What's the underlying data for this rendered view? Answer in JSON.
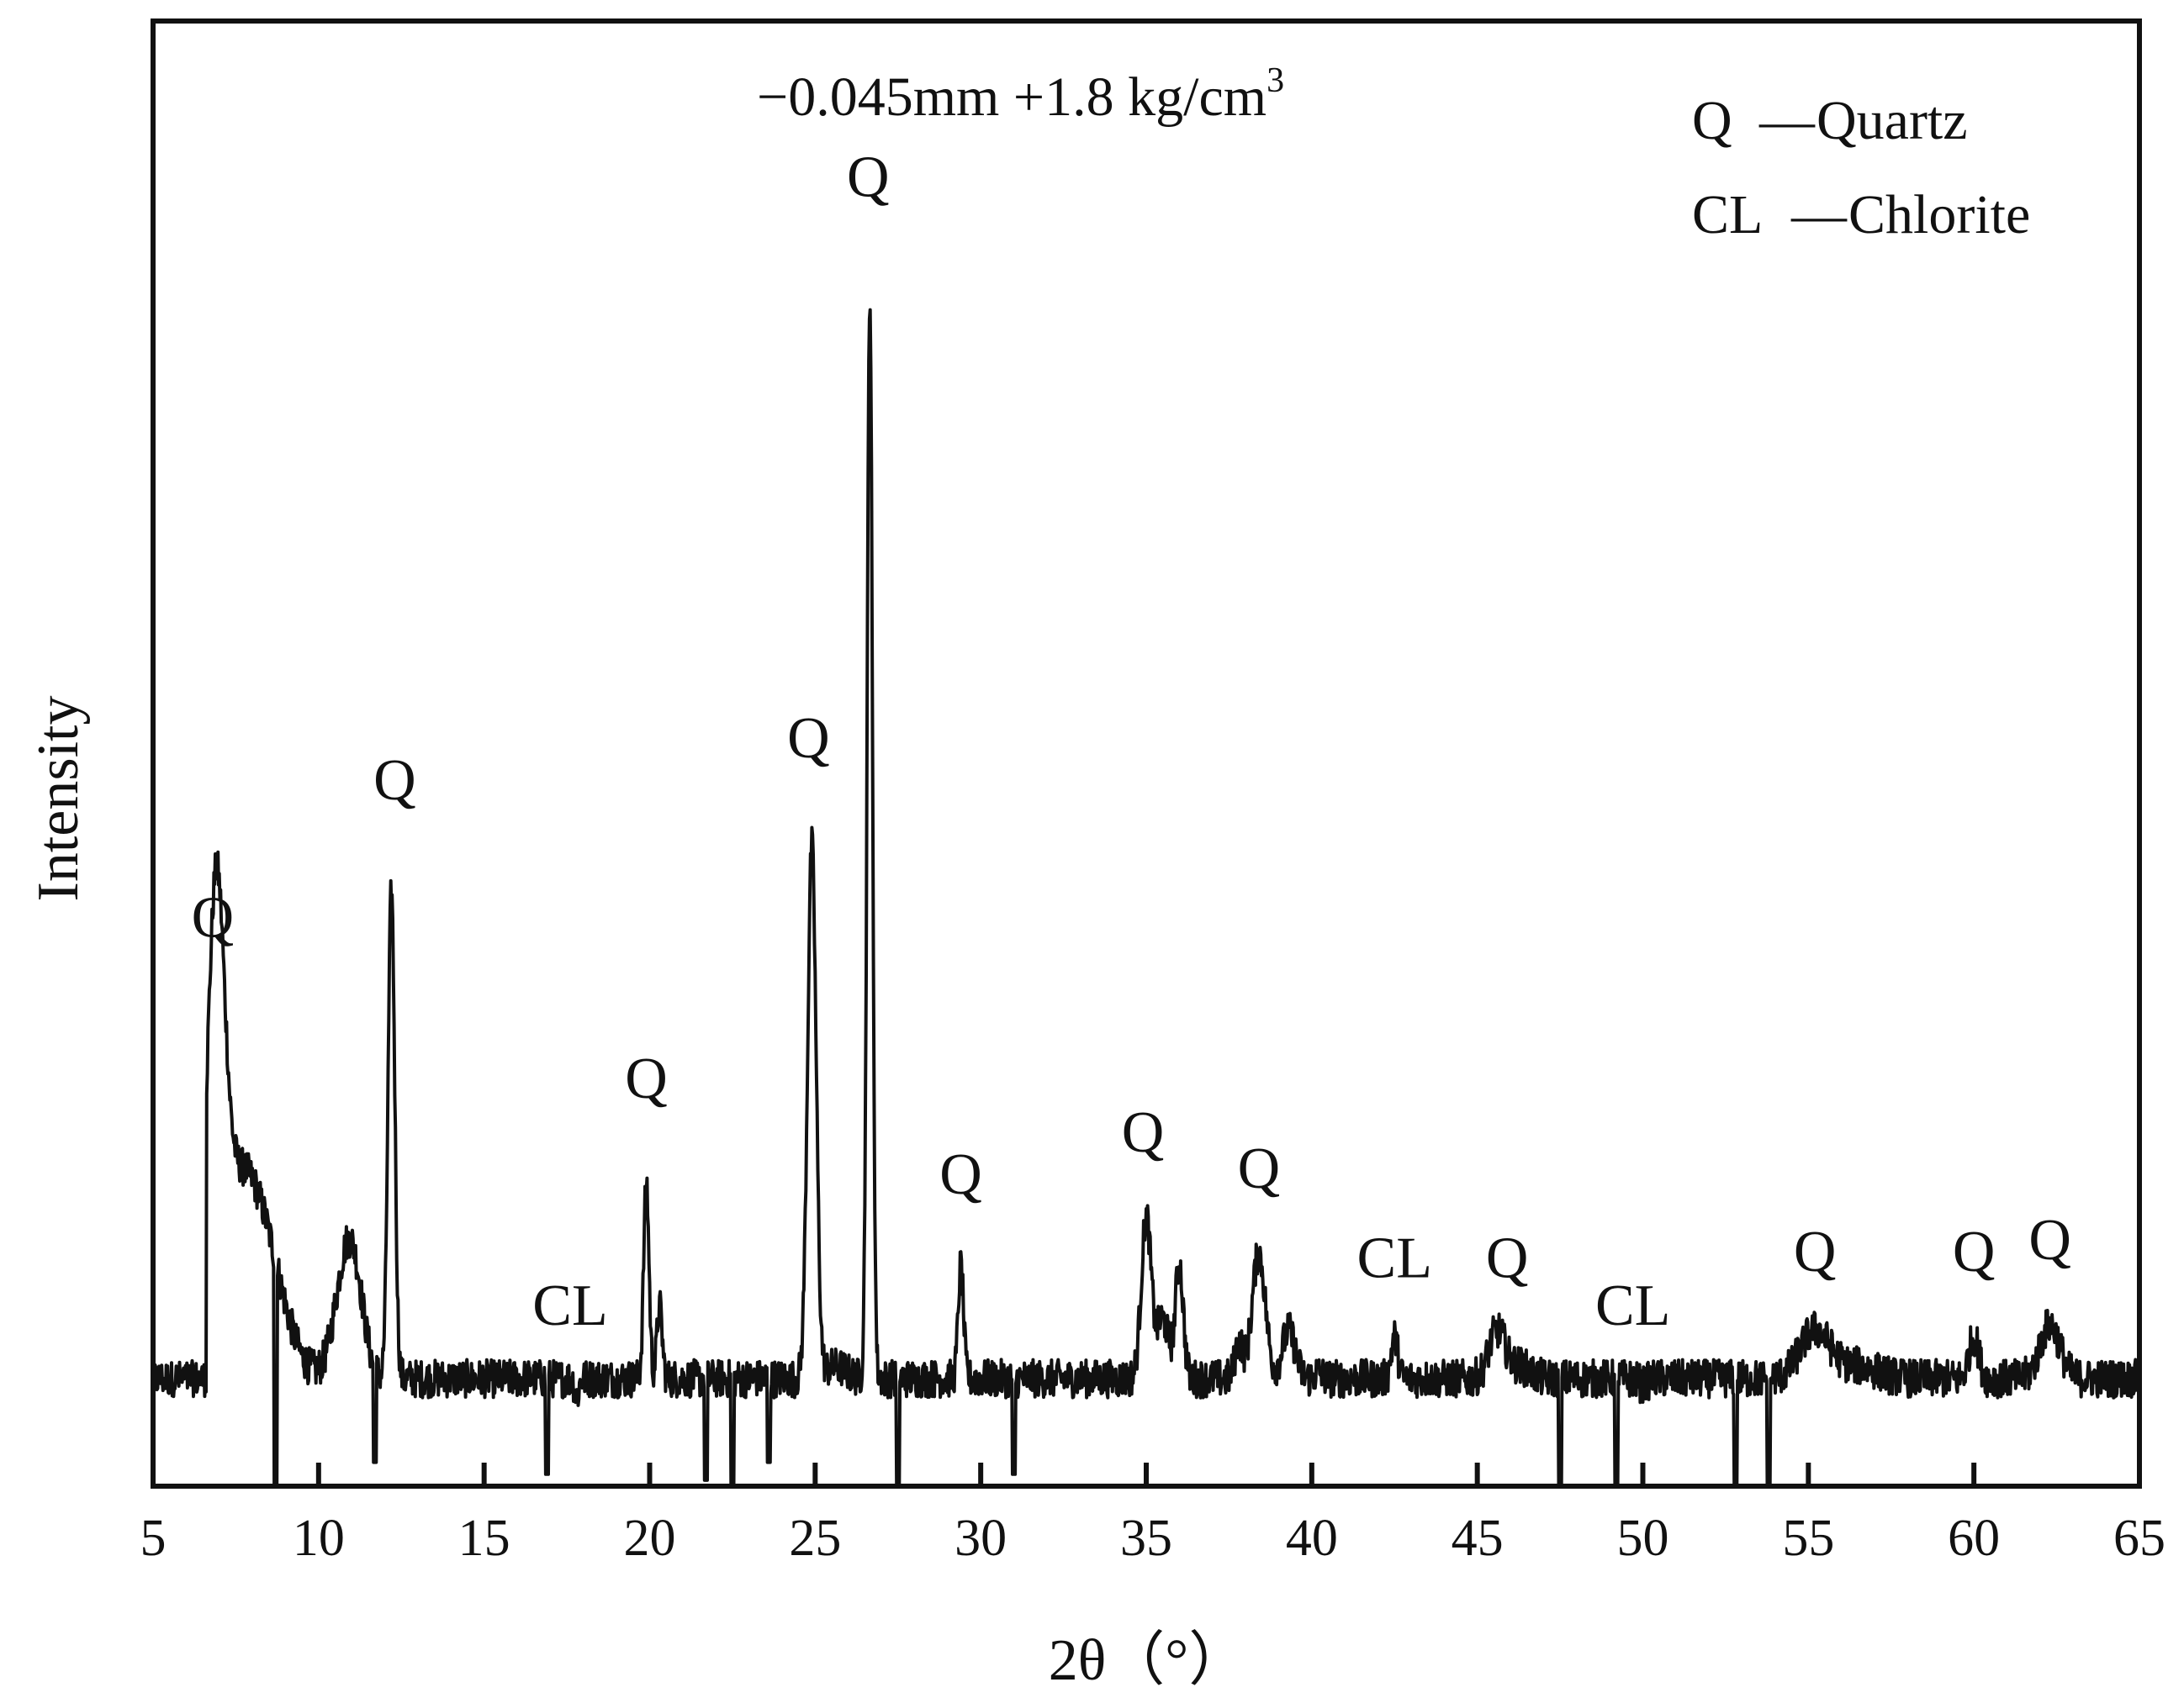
{
  "chart_data": {
    "type": "line",
    "title": "",
    "sample_label": "−0.045mm   +1.8 kg/cm",
    "sample_label_superscript": "3",
    "xlabel": "2θ（°）",
    "ylabel": "Intensity",
    "xlim": [
      5,
      65
    ],
    "ylim": [
      0,
      100
    ],
    "xticks": [
      5,
      10,
      15,
      20,
      25,
      30,
      35,
      40,
      45,
      50,
      55,
      60,
      65
    ],
    "xtick_labels": [
      "5",
      "10",
      "15",
      "20",
      "25",
      "30",
      "35",
      "40",
      "45",
      "50",
      "55",
      "60",
      "65"
    ],
    "grid": false,
    "legend_position": "top-right",
    "legend": [
      {
        "code": "Q",
        "dash": "—",
        "name": "Quartz"
      },
      {
        "code": "CL",
        "dash": "—",
        "name": "Chlorite"
      }
    ],
    "line_color": "#111111",
    "baseline": 9,
    "peaks": [
      {
        "x": 6.9,
        "y": 39.5,
        "w": 0.25,
        "label": "Q"
      },
      {
        "x": 7.5,
        "y": 25,
        "w": 0.8,
        "label": ""
      },
      {
        "x": 8.5,
        "y": 14,
        "w": 0.6,
        "label": ""
      },
      {
        "x": 10.8,
        "y": 17,
        "w": 0.35,
        "label": ""
      },
      {
        "x": 11.1,
        "y": 14,
        "w": 0.3,
        "label": ""
      },
      {
        "x": 12.2,
        "y": 50,
        "w": 0.1,
        "label": "Q"
      },
      {
        "x": 17.8,
        "y": 7.5,
        "w": 0.06,
        "label": "CL"
      },
      {
        "x": 19.9,
        "y": 25.5,
        "w": 0.08,
        "label": "Q"
      },
      {
        "x": 20.3,
        "y": 15,
        "w": 0.08,
        "label": ""
      },
      {
        "x": 24.9,
        "y": 53.5,
        "w": 0.13,
        "label": "Q"
      },
      {
        "x": 25.6,
        "y": 10,
        "w": 0.35,
        "label": ""
      },
      {
        "x": 26.65,
        "y": 100,
        "w": 0.08,
        "label": "Q"
      },
      {
        "x": 29.4,
        "y": 18.5,
        "w": 0.08,
        "label": "Q"
      },
      {
        "x": 35.0,
        "y": 22.5,
        "w": 0.15,
        "label": "Q"
      },
      {
        "x": 35.5,
        "y": 14,
        "w": 0.18,
        "label": ""
      },
      {
        "x": 36.0,
        "y": 18.5,
        "w": 0.12,
        "label": ""
      },
      {
        "x": 37.8,
        "y": 12,
        "w": 0.12,
        "label": ""
      },
      {
        "x": 38.4,
        "y": 19.5,
        "w": 0.2,
        "label": "Q"
      },
      {
        "x": 39.3,
        "y": 13,
        "w": 0.2,
        "label": ""
      },
      {
        "x": 40.2,
        "y": 9.5,
        "w": 0.12,
        "label": ""
      },
      {
        "x": 42.5,
        "y": 12.5,
        "w": 0.1,
        "label": "CL"
      },
      {
        "x": 45.6,
        "y": 13,
        "w": 0.25,
        "label": "Q"
      },
      {
        "x": 46.3,
        "y": 10,
        "w": 0.3,
        "label": ""
      },
      {
        "x": 50.0,
        "y": 8.5,
        "w": 0.12,
        "label": "CL"
      },
      {
        "x": 55.2,
        "y": 13,
        "w": 0.45,
        "label": "Q"
      },
      {
        "x": 56.5,
        "y": 10,
        "w": 0.6,
        "label": ""
      },
      {
        "x": 60.0,
        "y": 12.5,
        "w": 0.15,
        "label": "Q"
      },
      {
        "x": 62.3,
        "y": 13.5,
        "w": 0.3,
        "label": "Q"
      }
    ],
    "dips": [
      {
        "x": 8.7,
        "y": 0
      },
      {
        "x": 11.7,
        "y": 2
      },
      {
        "x": 16.9,
        "y": 1
      },
      {
        "x": 21.7,
        "y": 0.5
      },
      {
        "x": 22.5,
        "y": 0
      },
      {
        "x": 23.6,
        "y": 2
      },
      {
        "x": 27.5,
        "y": 0
      },
      {
        "x": 31.0,
        "y": 1
      },
      {
        "x": 47.5,
        "y": 0
      },
      {
        "x": 49.2,
        "y": 0
      },
      {
        "x": 52.8,
        "y": 0
      },
      {
        "x": 53.8,
        "y": 0
      }
    ],
    "annotations": [
      {
        "text": "Q",
        "x": 6.8,
        "y": 46
      },
      {
        "text": "Q",
        "x": 12.3,
        "y": 57.5
      },
      {
        "text": "CL",
        "x": 17.6,
        "y": 13.5
      },
      {
        "text": "Q",
        "x": 19.9,
        "y": 32.5
      },
      {
        "text": "Q",
        "x": 24.8,
        "y": 61
      },
      {
        "text": "Q",
        "x": 26.6,
        "y": 108
      },
      {
        "text": "Q",
        "x": 29.4,
        "y": 24.5
      },
      {
        "text": "Q",
        "x": 34.9,
        "y": 28
      },
      {
        "text": "Q",
        "x": 38.4,
        "y": 25
      },
      {
        "text": "CL",
        "x": 42.5,
        "y": 17.5
      },
      {
        "text": "Q",
        "x": 45.9,
        "y": 17.5
      },
      {
        "text": "CL",
        "x": 49.7,
        "y": 13.5
      },
      {
        "text": "Q",
        "x": 55.2,
        "y": 18
      },
      {
        "text": "Q",
        "x": 60.0,
        "y": 18
      },
      {
        "text": "Q",
        "x": 62.3,
        "y": 19
      }
    ]
  }
}
